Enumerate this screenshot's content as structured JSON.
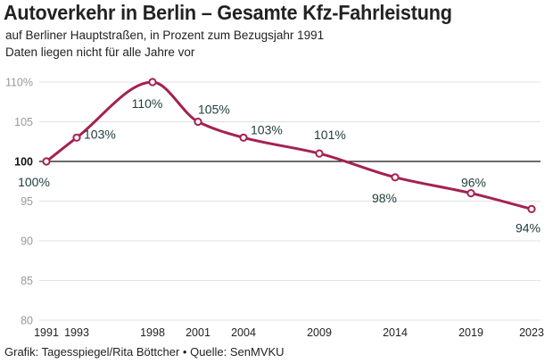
{
  "title": "Autoverkehr in Berlin – Gesamte Kfz-Fahrleistung",
  "subtitle_line1": "auf Berliner Hauptstraßen, in Prozent zum Bezugsjahr 1991",
  "subtitle_line2": "Daten liegen nicht für alle Jahre vor",
  "source": "Grafik: Tagesspiegel/Rita Böttcher • Quelle: SenMVKU",
  "colors": {
    "line": "#a52151",
    "baseline": "#111111",
    "grid": "#e2e2e2"
  },
  "chart_data": {
    "type": "line",
    "x": [
      1991,
      1993,
      1998,
      2001,
      2004,
      2009,
      2014,
      2019,
      2023
    ],
    "series": [
      {
        "values": [
          100,
          103,
          110,
          105,
          103,
          101,
          98,
          96,
          94
        ]
      }
    ],
    "data_labels": [
      "100%",
      "103%",
      "110%",
      "105%",
      "103%",
      "101%",
      "98%",
      "96%",
      "94%"
    ],
    "y_ticks": [
      80,
      85,
      90,
      95,
      100,
      105,
      110
    ],
    "y_tick_labels": [
      "80",
      "85",
      "90",
      "95",
      "100",
      "105",
      "110%"
    ],
    "x_tick_labels": [
      "1991",
      "1993",
      "1998",
      "2001",
      "2004",
      "2009",
      "2014",
      "2019",
      "2023"
    ],
    "baseline": 100,
    "ylim": [
      80,
      110
    ],
    "xlim": [
      1991,
      2023
    ],
    "grid": true,
    "legend": "none"
  }
}
